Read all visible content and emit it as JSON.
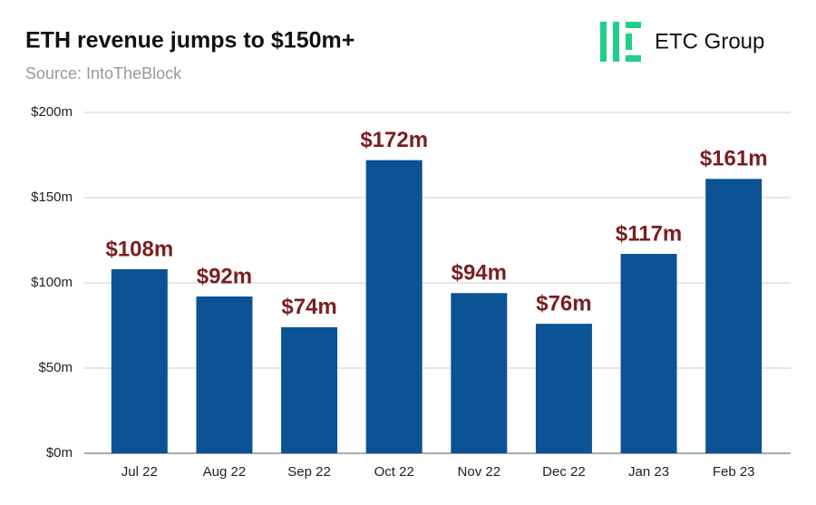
{
  "chart_data": {
    "type": "bar",
    "title": "ETH revenue jumps to $150m+",
    "subtitle": "Source: IntoTheBlock",
    "logo_text": "ETC Group",
    "categories": [
      "Jul 22",
      "Aug 22",
      "Sep 22",
      "Oct 22",
      "Nov 22",
      "Dec 22",
      "Jan 23",
      "Feb 23"
    ],
    "values": [
      108,
      92,
      74,
      172,
      94,
      76,
      117,
      161
    ],
    "value_labels": [
      "$108m",
      "$92m",
      "$74m",
      "$172m",
      "$94m",
      "$76m",
      "$117m",
      "$161m"
    ],
    "color": "#0b5394",
    "label_color": "#7a1f1f",
    "ylim": [
      0,
      200
    ],
    "yticks": [
      {
        "value": 0,
        "label": "$0m"
      },
      {
        "value": 50,
        "label": "$50m"
      },
      {
        "value": 100,
        "label": "$100m"
      },
      {
        "value": 150,
        "label": "$150m"
      },
      {
        "value": 200,
        "label": "$200m"
      }
    ],
    "grid": true
  }
}
